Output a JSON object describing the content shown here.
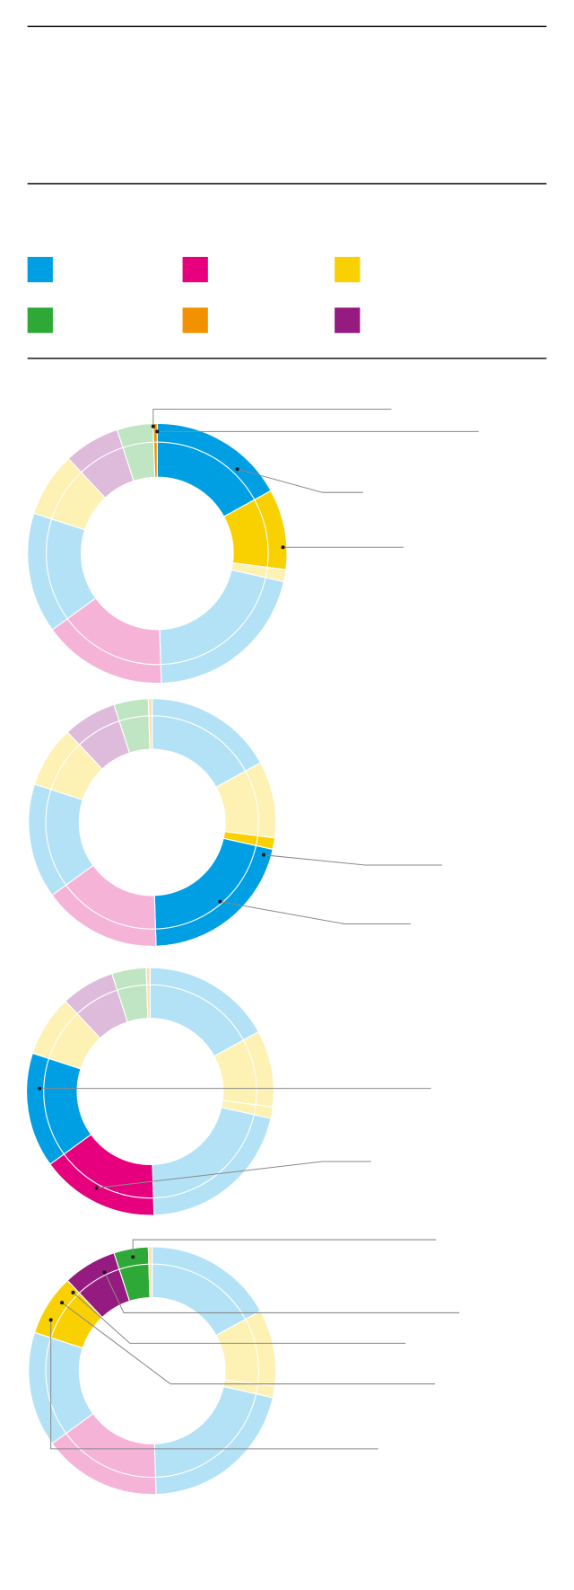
{
  "legend": [
    {
      "color": "#009fe3"
    },
    {
      "color": "#e6007e"
    },
    {
      "color": "#f9d000"
    },
    {
      "color": "#2ea836"
    },
    {
      "color": "#f39200"
    },
    {
      "color": "#951b81"
    }
  ],
  "chart_data": [
    {
      "type": "pie",
      "values": [
        17,
        10,
        1.5,
        21,
        15.5,
        15,
        8,
        7,
        4.5,
        0.5
      ],
      "colors": [
        "#009fe3",
        "#f9d000",
        "#fdf1b3",
        "#b3e2f7",
        "#f6b3d8",
        "#b3e2f7",
        "#fdf1b3",
        "#dfbbdb",
        "#c0e5c3",
        "#f39200"
      ]
    },
    {
      "type": "pie",
      "values": [
        17,
        10,
        1.5,
        21,
        15.5,
        15,
        8,
        7,
        4.5,
        0.5
      ],
      "colors": [
        "#b3e2f7",
        "#fdf1b3",
        "#f9d000",
        "#009fe3",
        "#f6b3d8",
        "#b3e2f7",
        "#fdf1b3",
        "#dfbbdb",
        "#c0e5c3",
        "#fbdeb3"
      ]
    },
    {
      "type": "pie",
      "values": [
        17,
        10,
        1.5,
        21,
        15.5,
        15,
        8,
        7,
        4.5,
        0.5
      ],
      "colors": [
        "#b3e2f7",
        "#fdf1b3",
        "#fdf1b3",
        "#b3e2f7",
        "#e6007e",
        "#009fe3",
        "#fdf1b3",
        "#dfbbdb",
        "#c0e5c3",
        "#fbdeb3"
      ]
    },
    {
      "type": "pie",
      "values": [
        17,
        10,
        1.5,
        21,
        15.5,
        15,
        8,
        7,
        4.5,
        0.5
      ],
      "colors": [
        "#b3e2f7",
        "#fdf1b3",
        "#fdf1b3",
        "#b3e2f7",
        "#f6b3d8",
        "#b3e2f7",
        "#f9d000",
        "#951b81",
        "#2ea836",
        "#fbdeb3"
      ]
    }
  ]
}
